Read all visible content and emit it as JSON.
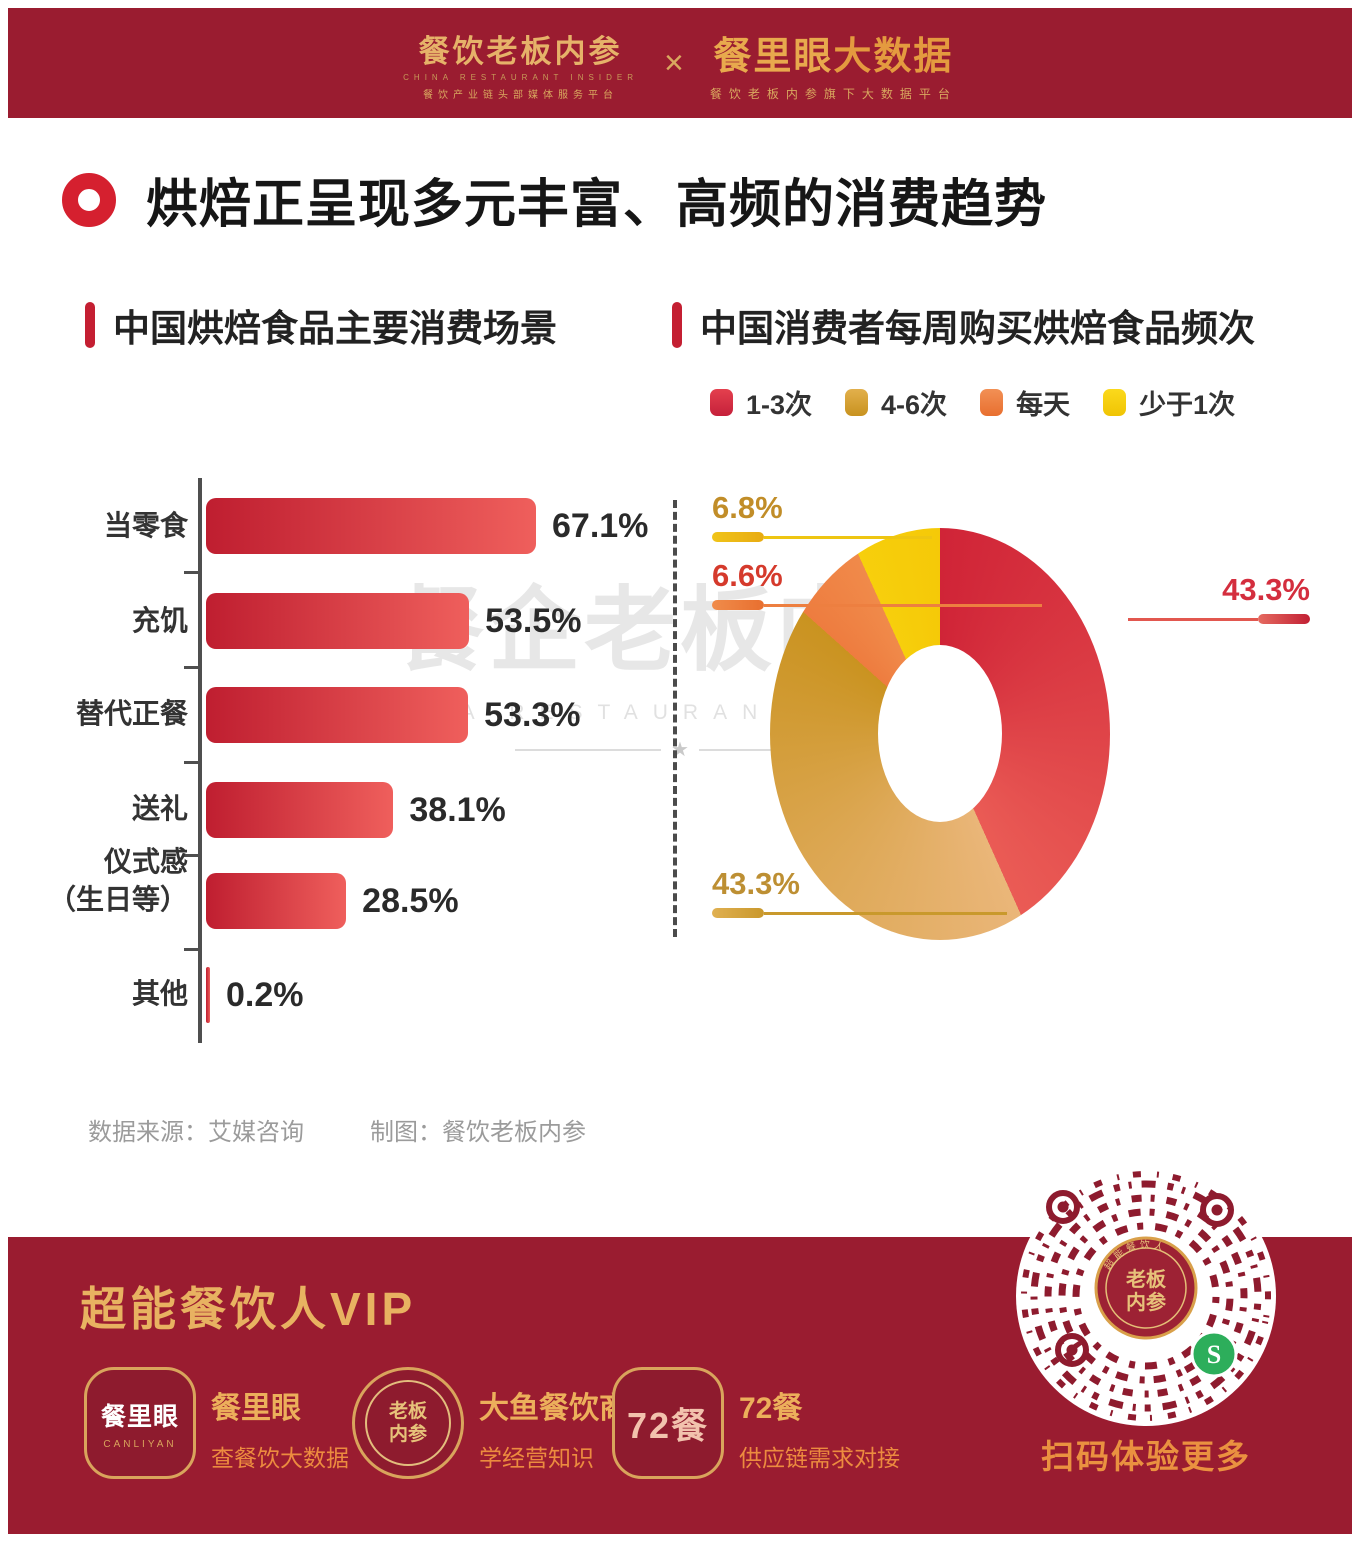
{
  "header": {
    "left": {
      "title": "餐饮老板内参",
      "en": "CHINA RESTAURANT INSIDER",
      "tagline": "餐饮产业链头部媒体服务平台"
    },
    "separator": "×",
    "right": {
      "title": "餐里眼",
      "title2": "大数据",
      "tagline": "餐饮老板内参旗下大数据平台"
    }
  },
  "title": "烘焙正呈现多元丰富、高频的消费趋势",
  "sections": {
    "bar_title": "中国烘焙食品主要消费场景",
    "donut_title": "中国消费者每周购买烘焙食品频次"
  },
  "chart_data": [
    {
      "type": "bar",
      "orientation": "horizontal",
      "title": "中国烘焙食品主要消费场景",
      "categories": [
        "当零食",
        "充饥",
        "替代正餐",
        "送礼",
        "仪式感\n（生日等）",
        "其他"
      ],
      "values": [
        67.1,
        53.5,
        53.3,
        38.1,
        28.5,
        0.2
      ],
      "labels": [
        "67.1%",
        "53.5%",
        "53.3%",
        "38.1%",
        "28.5%",
        "0.2%"
      ],
      "unit": "%",
      "bar_color_start": "#bf1e30",
      "bar_color_end": "#ef5f5c",
      "grid": false
    },
    {
      "type": "pie",
      "donut": true,
      "title": "中国消费者每周购买烘焙食品频次",
      "legend_position": "top",
      "start_angle_deg": 0,
      "clockwise": true,
      "slices": [
        {
          "label": "1-3次",
          "value": 43.3,
          "display": "43.3%",
          "color_start": "#d02437",
          "color_end": "#ea5b55",
          "swatch_light": "#e4404e",
          "swatch_dark": "#c5203a"
        },
        {
          "label": "4-6次",
          "value": 43.3,
          "display": "43.3%",
          "color_start": "#eab679",
          "color_end": "#ca9320",
          "swatch_light": "#e2b04c",
          "swatch_dark": "#c8921f"
        },
        {
          "label": "每天",
          "value": 6.6,
          "display": "6.6%",
          "color_start": "#ee7c3f",
          "color_end": "#f08a4a",
          "swatch_light": "#f29055",
          "swatch_dark": "#e86f2f"
        },
        {
          "label": "少于1次",
          "value": 6.8,
          "display": "6.8%",
          "color_start": "#f7cf0c",
          "color_end": "#f5c908",
          "swatch_light": "#fbd91c",
          "swatch_dark": "#f0c404"
        }
      ]
    }
  ],
  "watermark": {
    "line1": "餐企老板内参",
    "line2": "CHINA RESTAURANT INSIDER",
    "star": "★"
  },
  "source": {
    "data_source": "数据来源：艾媒咨询",
    "credit": "制图：餐饮老板内参"
  },
  "footer": {
    "heading": "超能餐饮人VIP",
    "items": [
      {
        "icon_text": "餐里眼",
        "icon_sub": "CANLIYAN",
        "name": "餐里眼",
        "desc": "查餐饮大数据"
      },
      {
        "icon_center": "老板内参",
        "name": "大鱼餐饮商学",
        "desc": "学经营知识"
      },
      {
        "icon_text": "72餐",
        "name": "72餐",
        "desc": "供应链需求对接"
      }
    ],
    "qr": {
      "caption": "扫码体验更多",
      "seal_line1": "老板",
      "seal_line2": "内参",
      "arc_top": "超能餐饮人"
    }
  },
  "colors": {
    "band": "#9a1c30",
    "accent_red": "#c41f32",
    "gold": "#e8b261"
  }
}
